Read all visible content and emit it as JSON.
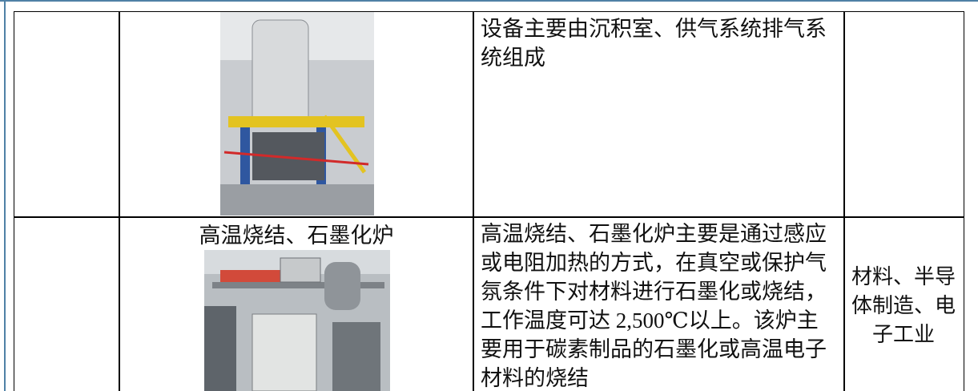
{
  "table": {
    "rows": [
      {
        "description": "设备主要由沉积室、供气系统排气系统组成"
      },
      {
        "equipment": "高温烧结、石墨化炉",
        "description": "高温烧结、石墨化炉主要是通过感应或电阻加热的方式，在真空或保护气氛条件下对材料进行石墨化或烧结，工作温度可达 2,500℃以上。该炉主要用于碳素制品的石墨化或高温电子材料的烧结",
        "application": "材料、半导体制造、电子工业"
      }
    ]
  }
}
